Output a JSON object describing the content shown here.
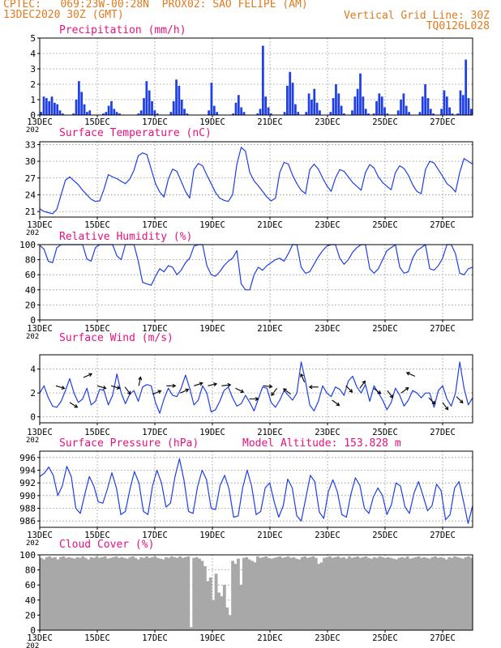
{
  "header": {
    "line1": "CPTEC:   069:23W-00:28N  PROX02: SAO FELIPE (AM)",
    "line2_left": "13DEC2020 30Z (GMT)",
    "line2_right": "Vertical Grid Line: 30Z",
    "line3_right": "TQ0126L028"
  },
  "colors": {
    "header": "#e07a1f",
    "title": "#e8117f",
    "series": "#1f3fe6",
    "cloud": "#a8a8a8",
    "grid": "#8a8a8a",
    "arrow": "#000000"
  },
  "x_labels": [
    "13DEC",
    "15DEC",
    "17DEC",
    "19DEC",
    "21DEC",
    "23DEC",
    "25DEC",
    "27DEC"
  ],
  "year_stub": "202",
  "chart_data": [
    {
      "type": "bar",
      "title": "Precipitation (mm/h)",
      "ylim": [
        0,
        5
      ],
      "yticks": [
        0,
        1,
        2,
        3,
        4,
        5
      ],
      "values": [
        0.2,
        1.2,
        1.1,
        0.9,
        1.2,
        0.8,
        0.7,
        0.3,
        0.1,
        0,
        0,
        0,
        0.1,
        1.0,
        2.2,
        1.5,
        0.7,
        0.2,
        0.3,
        0,
        0,
        0,
        0,
        0.1,
        0.2,
        0.6,
        0.9,
        0.4,
        0.2,
        0.1,
        0,
        0,
        0,
        0,
        0,
        0,
        0.1,
        0.3,
        1.1,
        2.2,
        1.6,
        0.9,
        0.3,
        0.1,
        0,
        0,
        0,
        0,
        0.2,
        0.9,
        2.3,
        1.9,
        1.0,
        0.4,
        0.1,
        0,
        0,
        0,
        0,
        0,
        0,
        0,
        0.3,
        2.1,
        0.6,
        0.2,
        0,
        0,
        0,
        0,
        0,
        0.1,
        0.8,
        1.3,
        0.5,
        0.2,
        0,
        0,
        0,
        0,
        0.1,
        0.4,
        4.5,
        1.2,
        0.5,
        0.1,
        0,
        0,
        0,
        0,
        0.2,
        1.9,
        2.8,
        2.1,
        0.7,
        0.2,
        0,
        0,
        0.2,
        1.4,
        1.0,
        1.7,
        0.8,
        0.3,
        0,
        0,
        0,
        0.2,
        1.1,
        2.0,
        1.4,
        0.6,
        0.1,
        0,
        0,
        0.3,
        1.2,
        1.7,
        2.7,
        1.2,
        0.4,
        0.1,
        0,
        0.1,
        0.9,
        1.4,
        1.2,
        0.5,
        0.1,
        0,
        0,
        0,
        0.3,
        1.0,
        1.4,
        0.6,
        0.2,
        0,
        0,
        0,
        0.2,
        1.2,
        2.0,
        1.1,
        0.4,
        0.1,
        0,
        0,
        0.4,
        1.6,
        1.2,
        0.5,
        0.1,
        0,
        0.1,
        1.6,
        1.3,
        3.6,
        1.1,
        0.4
      ]
    },
    {
      "type": "line",
      "title": "Surface Temperature (nC)",
      "ylim": [
        20,
        33.5
      ],
      "yticks": [
        21,
        24,
        27,
        30,
        33
      ],
      "values": [
        21.5,
        21.0,
        20.8,
        20.6,
        21.4,
        24.0,
        26.6,
        27.2,
        26.5,
        25.8,
        24.8,
        24.0,
        23.2,
        22.8,
        22.9,
        25.0,
        27.6,
        27.2,
        26.9,
        26.4,
        26.0,
        26.8,
        28.4,
        31.0,
        31.5,
        31.2,
        28.6,
        26.0,
        24.5,
        23.6,
        26.8,
        28.6,
        28.2,
        26.4,
        24.6,
        23.4,
        28.5,
        29.6,
        29.2,
        27.5,
        26.0,
        24.4,
        23.4,
        23.0,
        22.8,
        24.0,
        29.5,
        32.5,
        31.8,
        28.0,
        26.5,
        25.6,
        24.6,
        23.6,
        22.9,
        23.4,
        28.0,
        29.8,
        29.5,
        27.5,
        26.0,
        24.8,
        24.2,
        28.5,
        29.5,
        28.6,
        27.0,
        25.6,
        24.6,
        27.0,
        28.5,
        28.2,
        27.2,
        26.2,
        25.5,
        24.8,
        28.0,
        29.4,
        28.8,
        27.2,
        26.2,
        25.5,
        24.9,
        28.0,
        29.2,
        28.7,
        27.5,
        25.8,
        24.6,
        24.2,
        28.5,
        30.0,
        29.7,
        28.5,
        27.3,
        26.0,
        25.4,
        24.5,
        28.0,
        30.5,
        30.0,
        29.5
      ]
    },
    {
      "type": "line",
      "title": "Relative Humidity (%)",
      "ylim": [
        0,
        100
      ],
      "yticks": [
        0,
        20,
        40,
        60,
        80,
        100
      ],
      "values": [
        99,
        94,
        78,
        76,
        96,
        100,
        100,
        100,
        100,
        100,
        100,
        81,
        78,
        96,
        100,
        100,
        100,
        100,
        85,
        80,
        100,
        100,
        100,
        78,
        50,
        48,
        46,
        58,
        68,
        64,
        72,
        70,
        60,
        66,
        76,
        82,
        98,
        100,
        100,
        72,
        60,
        58,
        64,
        72,
        78,
        82,
        92,
        48,
        40,
        40,
        60,
        70,
        66,
        72,
        76,
        80,
        82,
        78,
        88,
        100,
        100,
        70,
        62,
        64,
        74,
        84,
        92,
        98,
        100,
        100,
        82,
        74,
        80,
        90,
        96,
        100,
        100,
        68,
        62,
        68,
        80,
        92,
        96,
        100,
        70,
        62,
        64,
        82,
        92,
        96,
        100,
        68,
        66,
        72,
        82,
        100,
        100,
        88,
        62,
        60,
        68,
        70
      ]
    },
    {
      "type": "line",
      "title": "Surface Wind (m/s)",
      "ylim": [
        -0.5,
        5.2
      ],
      "yticks": [
        0,
        2,
        4
      ],
      "values": [
        2.0,
        2.6,
        1.6,
        0.9,
        0.8,
        1.3,
        2.2,
        3.2,
        2.0,
        1.2,
        1.5,
        2.4,
        1.0,
        1.3,
        2.3,
        2.2,
        1.0,
        1.8,
        3.6,
        2.0,
        1.1,
        1.9,
        2.2,
        1.3,
        2.5,
        2.7,
        2.6,
        1.2,
        0.3,
        1.5,
        2.4,
        1.8,
        1.7,
        2.4,
        3.5,
        2.4,
        1.0,
        1.4,
        2.6,
        2.0,
        0.4,
        0.6,
        1.3,
        2.2,
        2.5,
        1.6,
        0.9,
        1.1,
        1.8,
        1.2,
        0.5,
        1.5,
        2.5,
        2.4,
        1.2,
        0.8,
        1.4,
        2.2,
        1.8,
        1.4,
        2.0,
        4.6,
        3.0,
        1.0,
        0.5,
        1.3,
        2.6,
        2.0,
        1.7,
        2.5,
        2.3,
        1.8,
        3.0,
        3.4,
        2.5,
        2.0,
        2.7,
        1.3,
        2.6,
        2.0,
        1.4,
        0.6,
        1.2,
        2.4,
        1.8,
        0.9,
        1.4,
        2.2,
        2.0,
        1.6,
        2.0,
        2.0,
        0.8,
        2.2,
        2.6,
        1.5,
        0.9,
        2.0,
        4.6,
        2.4,
        1.0,
        1.6
      ],
      "arrow_spd": [
        2.6,
        1.2,
        3.3,
        2.6,
        2.6,
        2.5,
        2.6,
        1.9,
        2.6,
        2.0,
        2.6,
        2.6,
        2.6,
        2.4,
        1.5,
        2.6,
        2.4,
        1.9,
        2.9,
        2.5,
        1.4,
        2.6,
        2.4,
        2.4,
        2.2,
        2.0,
        3.4,
        1.6,
        1.2,
        1.7
      ],
      "arrow_u": [
        1.0,
        0.8,
        0.9,
        1.0,
        1.0,
        0.6,
        0.2,
        1.0,
        1.0,
        0.9,
        0.9,
        0.9,
        0.9,
        0.8,
        1.0,
        1.0,
        -0.6,
        -0.8,
        -0.4,
        -1.0,
        0.8,
        0.7,
        0.6,
        0.8,
        0.6,
        0.8,
        -0.9,
        0.7,
        0.6,
        0.7
      ],
      "arrow_v": [
        -0.3,
        -0.5,
        0.4,
        -0.3,
        -0.3,
        -0.8,
        1.0,
        0.4,
        0.0,
        0.4,
        0.3,
        0.2,
        0.1,
        -0.4,
        0.0,
        -0.1,
        -0.8,
        0.6,
        0.9,
        0.0,
        -0.6,
        -0.7,
        0.8,
        -0.6,
        -0.8,
        0.6,
        0.4,
        -0.7,
        -0.8,
        -0.7
      ]
    },
    {
      "type": "line",
      "title": "Surface Pressure (hPa)",
      "subtitle": "Model Altitude: 153.828  m",
      "ylim": [
        985,
        997
      ],
      "yticks": [
        986,
        988,
        990,
        992,
        994,
        996
      ],
      "values": [
        993.0,
        993.5,
        994.5,
        993.2,
        990.0,
        991.5,
        994.6,
        993.0,
        988.0,
        987.2,
        990.2,
        993.0,
        991.5,
        989.0,
        988.8,
        991.0,
        993.6,
        991.2,
        987.0,
        987.5,
        991.0,
        993.8,
        992.0,
        987.5,
        987.0,
        991.5,
        994.0,
        992.0,
        988.2,
        988.8,
        993.0,
        995.8,
        992.4,
        987.5,
        987.2,
        991.4,
        994.0,
        992.5,
        988.0,
        987.8,
        991.6,
        993.2,
        991.0,
        986.6,
        986.8,
        991.2,
        994.0,
        991.5,
        987.0,
        987.5,
        991.2,
        992.0,
        989.0,
        986.6,
        988.4,
        992.6,
        991.2,
        986.8,
        986.0,
        989.6,
        993.2,
        992.2,
        987.4,
        986.4,
        990.6,
        992.5,
        990.6,
        987.0,
        986.6,
        990.2,
        992.8,
        991.6,
        988.0,
        987.2,
        989.8,
        991.2,
        990.0,
        987.0,
        988.6,
        992.0,
        991.5,
        988.2,
        987.2,
        990.4,
        992.2,
        990.0,
        987.6,
        988.4,
        991.8,
        990.8,
        986.2,
        987.0,
        991.2,
        992.2,
        989.0,
        985.6,
        988.4
      ]
    },
    {
      "type": "area",
      "title": "Cloud Cover (%)",
      "ylim": [
        0,
        100
      ],
      "yticks": [
        0,
        20,
        40,
        60,
        80,
        100
      ],
      "values": [
        96,
        94,
        97,
        98,
        96,
        97,
        94,
        97,
        98,
        96,
        97,
        96,
        95,
        97,
        96,
        98,
        96,
        94,
        97,
        96,
        98,
        96,
        97,
        98,
        95,
        96,
        97,
        98,
        96,
        97,
        96,
        95,
        97,
        98,
        96,
        94,
        97,
        96,
        98,
        96,
        97,
        98,
        96,
        95,
        94,
        97,
        96,
        98,
        97,
        96,
        98,
        96,
        97,
        98,
        4,
        96,
        97,
        95,
        92,
        85,
        65,
        70,
        40,
        75,
        50,
        45,
        60,
        30,
        20,
        92,
        88,
        95,
        60,
        96,
        97,
        94,
        92,
        90,
        98,
        96,
        97,
        98,
        96,
        95,
        96,
        97,
        98,
        96,
        97,
        98,
        96,
        97,
        95,
        94,
        97,
        98,
        96,
        97,
        98,
        96,
        88,
        90,
        96,
        97,
        98,
        96,
        97,
        98,
        96,
        97,
        95,
        98,
        96,
        97,
        98,
        96,
        97,
        98,
        96,
        95,
        97,
        96,
        98,
        97,
        96,
        97,
        96,
        95,
        94,
        96,
        97,
        96,
        98,
        95,
        96,
        97,
        98,
        96,
        97,
        96,
        95,
        97,
        98,
        96,
        97,
        96,
        94,
        97,
        96,
        98,
        97,
        96,
        95,
        97,
        98,
        96
      ]
    }
  ]
}
